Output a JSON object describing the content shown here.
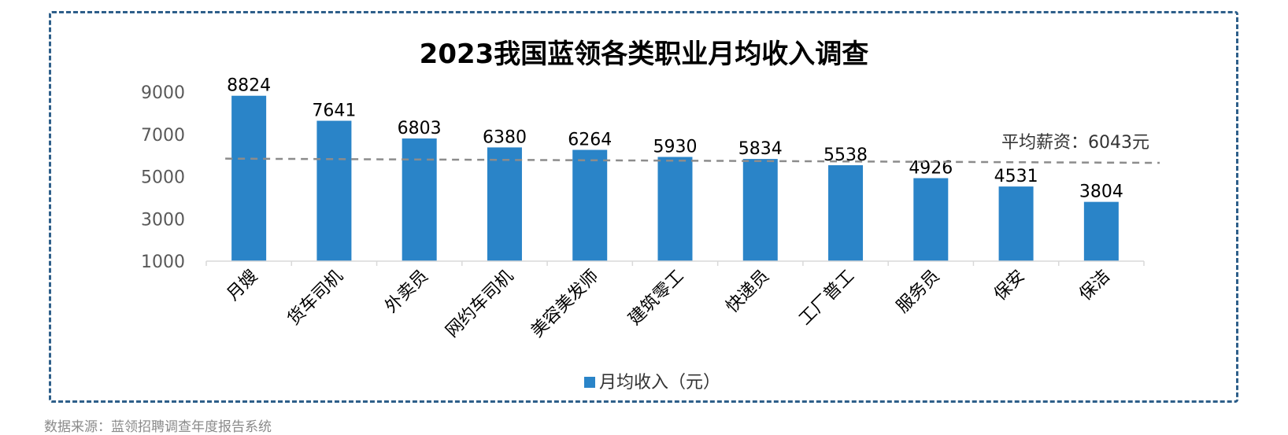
{
  "chart_data": {
    "type": "bar",
    "title": "2023我国蓝领各类职业月均收入调查",
    "categories": [
      "月嫂",
      "货车司机",
      "外卖员",
      "网约车司机",
      "美容美发师",
      "建筑零工",
      "快递员",
      "工厂普工",
      "服务员",
      "保安",
      "保洁"
    ],
    "series": [
      {
        "name": "月均收入（元）",
        "values": [
          8824,
          7641,
          6803,
          6380,
          6264,
          5930,
          5834,
          5538,
          4926,
          4531,
          3804
        ]
      }
    ],
    "y_ticks": [
      "9000",
      "7000",
      "5000",
      "3000",
      "1000"
    ],
    "ylim": [
      1000,
      9000
    ],
    "grid": false,
    "legend_position": "bottom",
    "average": {
      "value": 6043,
      "label": "平均薪资：6043元"
    },
    "average_line_trend": {
      "start": 5850,
      "end": 5650
    },
    "colors": {
      "bar": "#2a84c8",
      "average_line": "#8c8c8c",
      "frame_border": "#2e5f8a",
      "axis": "#d9d9d9"
    }
  },
  "source_note": "数据来源：蓝领招聘调查年度报告系统"
}
